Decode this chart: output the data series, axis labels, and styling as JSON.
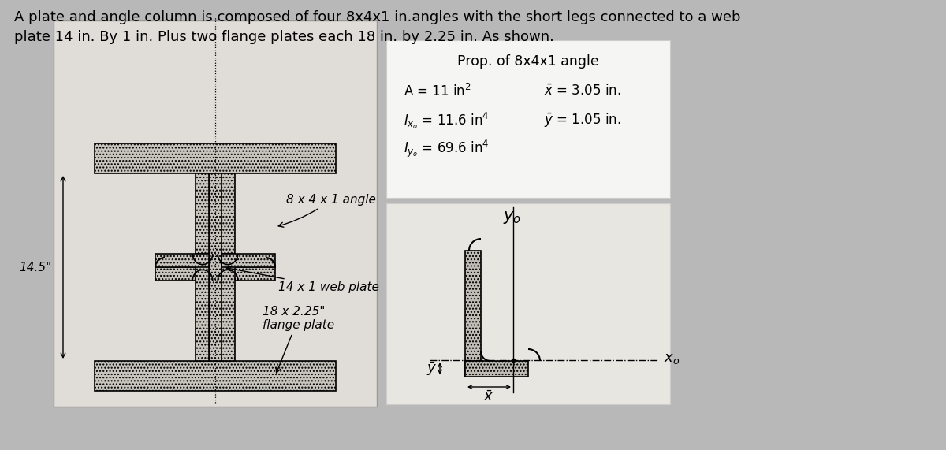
{
  "title_text1": "A plate and angle column is composed of four 8x4x1 in.angles with the short legs connected to a web",
  "title_text2": "plate 14 in. By 1 in. Plus two flange plates each 18 in. by 2.25 in. As shown.",
  "bg_color": "#b8b8b8",
  "left_panel_bg": "#e0ddd8",
  "props_panel_bg": "#f5f5f3",
  "angle_panel_bg": "#e8e6e0",
  "label_angle": "8 x 4 x 1 angle",
  "label_web": "14 x 1 web plate",
  "label_flange1": "18 x 2.25\"",
  "label_flange2": "flange plate",
  "label_145": "14.5\"",
  "props_title": "Prop. of 8x4x1 angle"
}
